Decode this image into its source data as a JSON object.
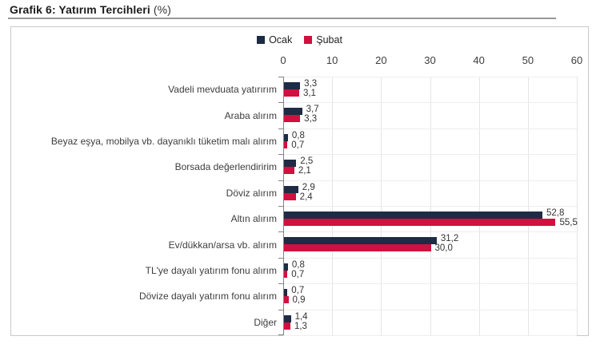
{
  "page": {
    "title_main": "Grafik 6: Yatırım Tercihleri",
    "title_suffix": "(%)"
  },
  "colors": {
    "ocak": "#1e2b45",
    "subat": "#d20f3e",
    "grid": "#e4e4e4",
    "axis": "#848484",
    "box_border": "#c9c9c9",
    "text": "#3d3d3d"
  },
  "chart_data": {
    "type": "bar",
    "orientation": "horizontal",
    "title": "Grafik 6: Yatırım Tercihleri (%)",
    "xlabel": "",
    "ylabel": "",
    "xlim": [
      0,
      60
    ],
    "x_ticks": [
      0,
      10,
      20,
      30,
      40,
      50,
      60
    ],
    "grid": true,
    "legend_position": "top-center",
    "categories": [
      "Vadeli mevduata yatırırım",
      "Araba alırım",
      "Beyaz eşya, mobilya vb. dayanıklı tüketim malı alırım",
      "Borsada değerlendiririm",
      "Döviz alırım",
      "Altın alırım",
      "Ev/dükkan/arsa vb. alırım",
      "TL'ye dayalı yatırım fonu alırım",
      "Dövize dayalı yatırım fonu alırım",
      "Diğer"
    ],
    "series": [
      {
        "name": "Ocak",
        "color": "#1e2b45",
        "values": [
          3.3,
          3.7,
          0.8,
          2.5,
          2.9,
          52.8,
          31.2,
          0.8,
          0.7,
          1.4
        ],
        "value_labels": [
          "3,3",
          "3,7",
          "0,8",
          "2,5",
          "2,9",
          "52,8",
          "31,2",
          "0,8",
          "0,7",
          "1,4"
        ]
      },
      {
        "name": "Şubat",
        "color": "#d20f3e",
        "values": [
          3.1,
          3.3,
          0.7,
          2.1,
          2.4,
          55.5,
          30.0,
          0.7,
          0.9,
          1.3
        ],
        "value_labels": [
          "3,1",
          "3,3",
          "0,7",
          "2,1",
          "2,4",
          "55,5",
          "30,0",
          "0,7",
          "0,9",
          "1,3"
        ]
      }
    ]
  }
}
